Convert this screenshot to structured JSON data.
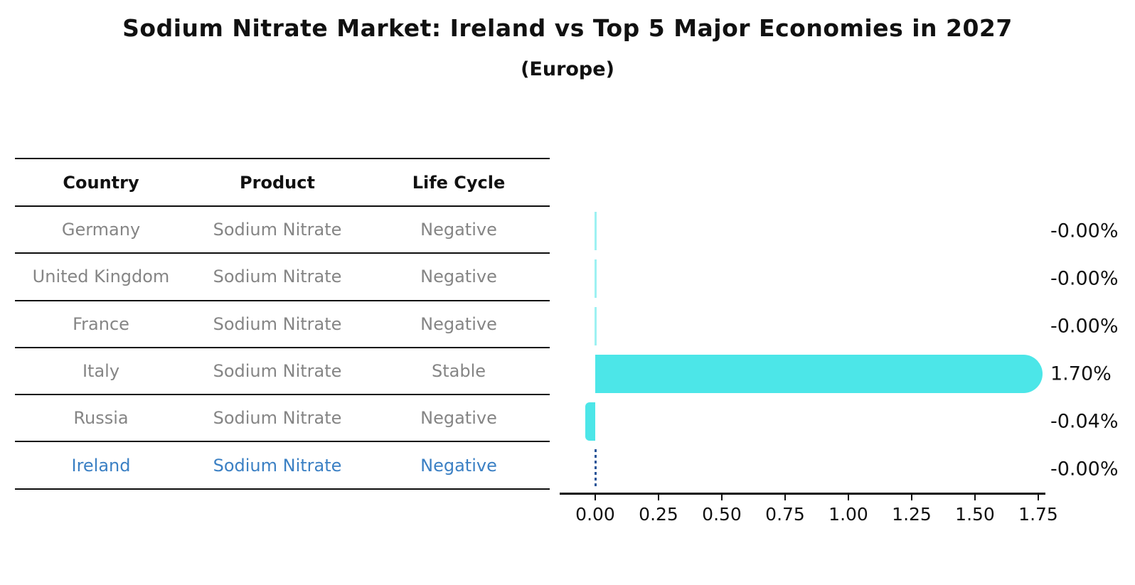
{
  "title": "Sodium Nitrate Market: Ireland vs Top 5 Major Economies in 2027",
  "subtitle": "(Europe)",
  "colors": {
    "bar": "#4ce6e8",
    "highlight_text": "#3b80c4",
    "highlight_dash": "#2a5699",
    "row_text": "#858585",
    "header_text": "#111111"
  },
  "table": {
    "headers": [
      "Country",
      "Product",
      "Life Cycle"
    ],
    "rows": [
      {
        "country": "Germany",
        "product": "Sodium Nitrate",
        "life_cycle": "Negative",
        "highlight": false
      },
      {
        "country": "United Kingdom",
        "product": "Sodium Nitrate",
        "life_cycle": "Negative",
        "highlight": false
      },
      {
        "country": "France",
        "product": "Sodium Nitrate",
        "life_cycle": "Negative",
        "highlight": false
      },
      {
        "country": "Italy",
        "product": "Sodium Nitrate",
        "life_cycle": "Stable",
        "highlight": false
      },
      {
        "country": "Russia",
        "product": "Sodium Nitrate",
        "life_cycle": "Negative",
        "highlight": false
      },
      {
        "country": "Ireland",
        "product": "Sodium Nitrate",
        "life_cycle": "Negative",
        "highlight": true
      }
    ]
  },
  "chart_data": {
    "type": "bar",
    "orientation": "horizontal",
    "title": "Sodium Nitrate Market: Ireland vs Top 5 Major Economies in 2027 (Europe)",
    "categories": [
      "Germany",
      "United Kingdom",
      "France",
      "Italy",
      "Russia",
      "Ireland"
    ],
    "values": [
      -0.0,
      -0.0,
      -0.0,
      1.7,
      -0.04,
      -0.0
    ],
    "value_labels": [
      "-0.00%",
      "-0.00%",
      "-0.00%",
      "1.70%",
      "-0.04%",
      "-0.00%"
    ],
    "highlight_country": "Ireland",
    "x_ticks": [
      0.0,
      0.25,
      0.5,
      0.75,
      1.0,
      1.25,
      1.5,
      1.75
    ],
    "x_tick_labels": [
      "0.00",
      "0.25",
      "0.50",
      "0.75",
      "1.00",
      "1.25",
      "1.50",
      "1.75"
    ],
    "xlim": [
      -0.14,
      1.78
    ],
    "grid": false,
    "legend": false
  }
}
